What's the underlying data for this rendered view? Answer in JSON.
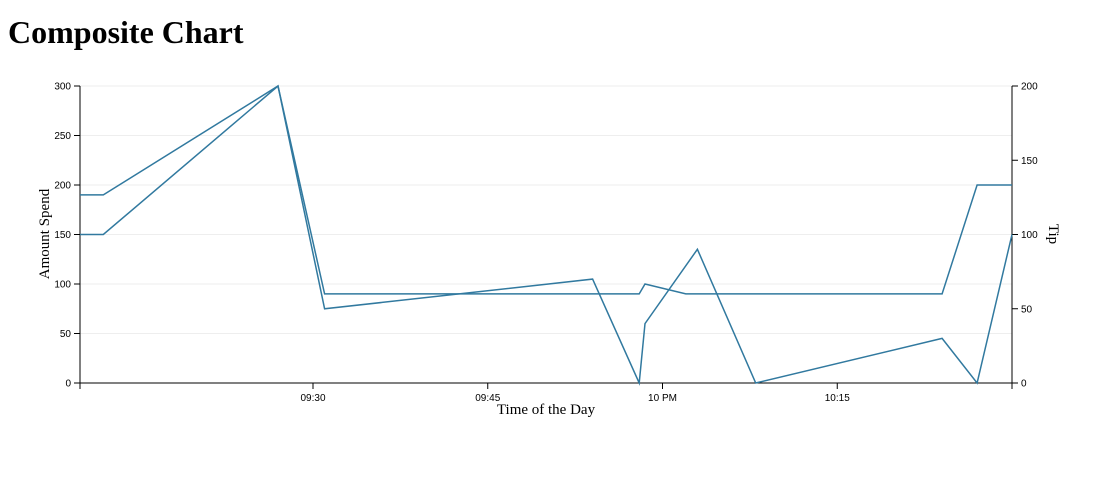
{
  "page": {
    "title": "Composite Chart"
  },
  "chart_data": {
    "type": "line",
    "title": "Composite Chart",
    "xlabel": "Time of the Day",
    "ylabel_left": "Amount Spend",
    "ylabel_right": "Tip",
    "x_range": [
      "09:10",
      "10:30"
    ],
    "ylim_left": [
      0,
      300
    ],
    "ylim_right": [
      0,
      200
    ],
    "x_ticks": [
      {
        "time": "09:30",
        "label": "09:30"
      },
      {
        "time": "09:45",
        "label": "09:45"
      },
      {
        "time": "10:00",
        "label": "10 PM"
      },
      {
        "time": "10:15",
        "label": "10:15"
      }
    ],
    "y_ticks_left": [
      0,
      50,
      100,
      150,
      200,
      250,
      300
    ],
    "y_ticks_right": [
      0,
      50,
      100,
      150,
      200
    ],
    "grid": "horizontal",
    "series": [
      {
        "axis": "left",
        "color": "#31799f",
        "points": [
          [
            "09:10",
            190
          ],
          [
            "09:12",
            190
          ],
          [
            "09:27",
            300
          ],
          [
            "09:31",
            90
          ],
          [
            "09:45",
            90
          ],
          [
            "09:58",
            90
          ],
          [
            "09:58.5",
            100
          ],
          [
            "10:02",
            90
          ],
          [
            "10:17",
            90
          ],
          [
            "10:24",
            90
          ],
          [
            "10:27",
            200
          ],
          [
            "10:30",
            200
          ]
        ]
      },
      {
        "axis": "right",
        "color": "#31799f",
        "points": [
          [
            "09:10",
            100
          ],
          [
            "09:12",
            100
          ],
          [
            "09:27",
            200
          ],
          [
            "09:31",
            50
          ],
          [
            "09:54",
            70
          ],
          [
            "09:58",
            0
          ],
          [
            "09:58.5",
            40
          ],
          [
            "10:03",
            90
          ],
          [
            "10:08",
            0
          ],
          [
            "10:24",
            30
          ],
          [
            "10:27",
            0
          ],
          [
            "10:30",
            100
          ]
        ]
      }
    ]
  }
}
